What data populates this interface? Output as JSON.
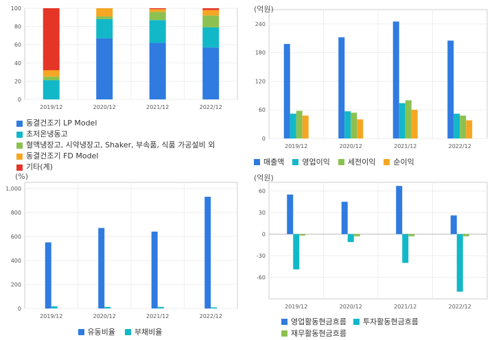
{
  "chart_data": [
    {
      "id": "sales-mix",
      "type": "bar",
      "stacked": true,
      "categories": [
        "2019/12",
        "2020/12",
        "2021/12",
        "2022/12"
      ],
      "ylim": [
        0,
        100
      ],
      "yticks": [
        0,
        20,
        40,
        60,
        80,
        100
      ],
      "unit": "",
      "legend_position": "bottom",
      "series": [
        {
          "name": "동결건조기 LP Model",
          "color": "#2f7be0",
          "values": [
            0,
            67,
            62,
            57
          ]
        },
        {
          "name": "초저온냉동고",
          "color": "#12b8c8",
          "values": [
            21,
            21,
            25,
            22
          ]
        },
        {
          "name": "혈액냉장고, 시약냉장고, Shaker, 부속품, 식품 가공설비 외",
          "color": "#8cc152",
          "values": [
            4,
            3,
            9,
            13
          ]
        },
        {
          "name": "동결건조기 FD Model",
          "color": "#f5a623",
          "values": [
            7,
            9,
            3,
            6
          ]
        },
        {
          "name": "기타(계)",
          "color": "#e53527",
          "values": [
            68,
            0,
            1,
            2
          ]
        }
      ]
    },
    {
      "id": "income",
      "type": "bar",
      "categories": [
        "2019/12",
        "2020/12",
        "2021/12",
        "2022/12"
      ],
      "ylim": [
        0,
        270
      ],
      "yticks": [
        0,
        60,
        120,
        180,
        240
      ],
      "unit": "(억원)",
      "legend_position": "bottom",
      "series": [
        {
          "name": "매출액",
          "color": "#2f7be0",
          "values": [
            198,
            212,
            245,
            205
          ]
        },
        {
          "name": "영업이익",
          "color": "#12b8c8",
          "values": [
            52,
            57,
            74,
            52
          ]
        },
        {
          "name": "세전이익",
          "color": "#8cc152",
          "values": [
            58,
            54,
            80,
            48
          ]
        },
        {
          "name": "순이익",
          "color": "#f5a623",
          "values": [
            48,
            40,
            60,
            38
          ]
        }
      ]
    },
    {
      "id": "ratios",
      "type": "bar",
      "categories": [
        "2019/12",
        "2020/12",
        "2021/12",
        "2022/12"
      ],
      "ylim": [
        0,
        1050
      ],
      "yticks": [
        0,
        200,
        400,
        600,
        800,
        1000
      ],
      "ytick_labels": [
        "0",
        "200",
        "400",
        "600",
        "800",
        "1,000"
      ],
      "unit": "(%)",
      "legend_position": "bottom",
      "series": [
        {
          "name": "유동비율",
          "color": "#2f7be0",
          "values": [
            550,
            670,
            640,
            930
          ]
        },
        {
          "name": "부채비율",
          "color": "#12b8c8",
          "values": [
            18,
            13,
            13,
            9
          ]
        }
      ]
    },
    {
      "id": "cashflow",
      "type": "bar",
      "categories": [
        "2019/12",
        "2020/12",
        "2021/12",
        "2022/12"
      ],
      "ylim": [
        -90,
        72
      ],
      "yticks": [
        -60,
        -30,
        0,
        30,
        60
      ],
      "unit": "(억원)",
      "legend_position": "bottom",
      "series": [
        {
          "name": "영업활동현금흐름",
          "color": "#2f7be0",
          "values": [
            55,
            45,
            67,
            26
          ]
        },
        {
          "name": "투자활동현금흐름",
          "color": "#12b8c8",
          "values": [
            -49,
            -11,
            -40,
            -80
          ]
        },
        {
          "name": "재무활동현금흐름",
          "color": "#8cc152",
          "values": [
            -2,
            -3,
            -3,
            -3
          ]
        }
      ]
    }
  ]
}
